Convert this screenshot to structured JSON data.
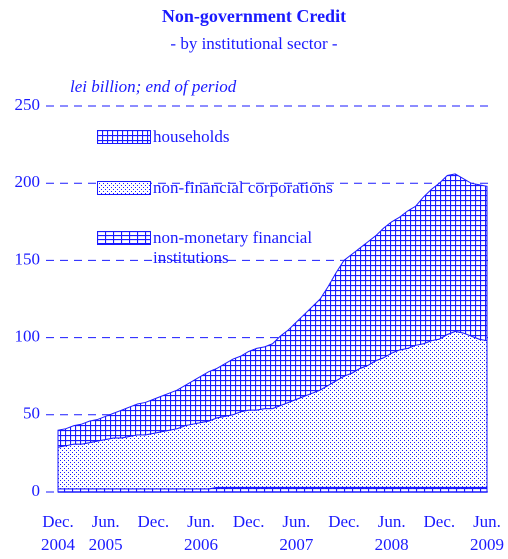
{
  "chart_data": {
    "type": "stacked_area",
    "title": "Non-government Credit",
    "subtitle": "- by institutional sector -",
    "y_label": "lei billion; end of period",
    "categories": [
      "Dec.",
      null,
      null,
      null,
      null,
      null,
      "Jun.",
      null,
      null,
      null,
      null,
      null,
      "Dec.",
      null,
      null,
      null,
      null,
      null,
      "Jun.",
      null,
      null,
      null,
      null,
      null,
      "Dec.",
      null,
      null,
      null,
      null,
      null,
      "Jun.",
      null,
      null,
      null,
      null,
      null,
      "Dec.",
      null,
      null,
      null,
      null,
      null,
      "Jun.",
      null,
      null,
      null,
      null,
      null,
      "Dec.",
      null,
      null,
      null,
      null,
      null,
      "Jun."
    ],
    "category_years": [
      "2004",
      null,
      null,
      null,
      null,
      null,
      "2005",
      null,
      null,
      null,
      null,
      null,
      null,
      null,
      null,
      null,
      null,
      null,
      "2006",
      null,
      null,
      null,
      null,
      null,
      null,
      null,
      null,
      null,
      null,
      null,
      "2007",
      null,
      null,
      null,
      null,
      null,
      null,
      null,
      null,
      null,
      null,
      null,
      "2008",
      null,
      null,
      null,
      null,
      null,
      null,
      null,
      null,
      null,
      null,
      null,
      "2009"
    ],
    "series": [
      {
        "name": "non-monetary financial institutions",
        "color": "#1a1aff",
        "pattern": "lines",
        "values": [
          2,
          2,
          2,
          2,
          2,
          2,
          2,
          2,
          2,
          2,
          2,
          2,
          2,
          2,
          2,
          2,
          2,
          2,
          2,
          2,
          3,
          3,
          3,
          3,
          3,
          3,
          3,
          3,
          3,
          3,
          3,
          3,
          3,
          3,
          3,
          3,
          3,
          3,
          3,
          3,
          3,
          3,
          3,
          3,
          3,
          3,
          3,
          3,
          3,
          3,
          3,
          3,
          3,
          3,
          3
        ]
      },
      {
        "name": "non-financial corporations",
        "color": "#1a1aff",
        "pattern": "dots",
        "values": [
          27,
          28,
          29,
          29,
          30,
          31,
          32,
          33,
          33,
          34,
          35,
          35,
          36,
          37,
          38,
          39,
          41,
          42,
          43,
          44,
          45,
          46,
          47,
          49,
          50,
          50,
          51,
          51,
          53,
          55,
          57,
          59,
          61,
          63,
          66,
          69,
          72,
          74,
          77,
          79,
          82,
          84,
          87,
          89,
          90,
          92,
          93,
          95,
          96,
          99,
          101,
          100,
          98,
          96,
          95
        ]
      },
      {
        "name": "households",
        "color": "#1a1aff",
        "pattern": "grid",
        "values": [
          11,
          11,
          12,
          13,
          14,
          14,
          15,
          16,
          18,
          19,
          20,
          21,
          22,
          23,
          24,
          25,
          26,
          28,
          30,
          32,
          32,
          34,
          36,
          36,
          38,
          40,
          40,
          42,
          45,
          47,
          50,
          53,
          56,
          59,
          64,
          70,
          75,
          77,
          78,
          80,
          81,
          84,
          85,
          86,
          89,
          90,
          95,
          98,
          101,
          103,
          102,
          100,
          99,
          100,
          100
        ]
      }
    ],
    "ylim": [
      0,
      250
    ],
    "yticks": [
      0,
      50,
      100,
      150,
      200,
      250
    ],
    "grid": true
  }
}
